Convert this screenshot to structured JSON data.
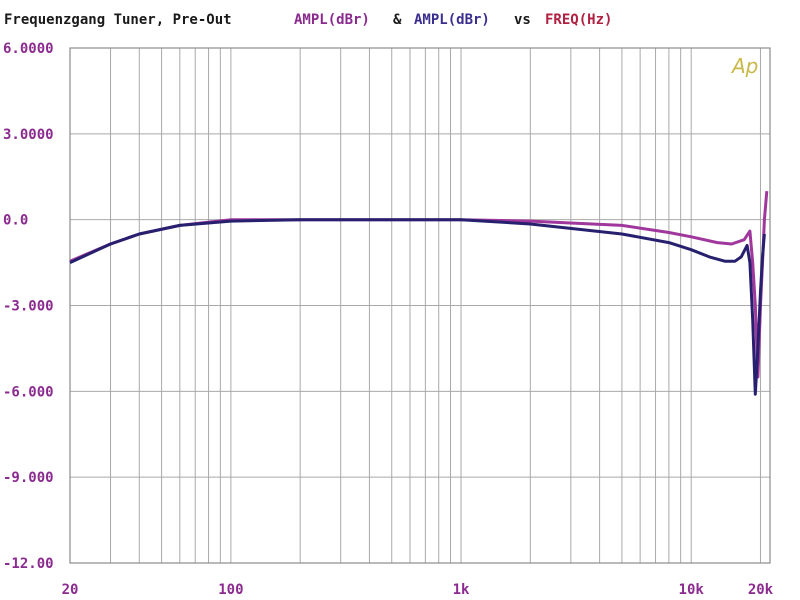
{
  "colors": {
    "grid": "#a9a9a9",
    "frame": "#8c8c8c",
    "axis_text": "#8b2a8f",
    "title_text": "#1a1a1a",
    "series_purple": "#a0379c",
    "series_navy": "#26206e",
    "ampl_label": "#8b2a8f",
    "ampl2_label": "#3a2f8f",
    "freq_label": "#b02040",
    "logo": "#c9b84a"
  },
  "title": {
    "main": "Frequenzgang Tuner, Pre-Out",
    "ampl1": "AMPL(dBr)",
    "amp_sep": "&",
    "ampl2": "AMPL(dBr)",
    "vs": "vs",
    "freq": "FREQ(Hz)"
  },
  "logo_text": "Ap",
  "chart_data": {
    "type": "line",
    "xscale": "log",
    "xlim": [
      20,
      22000
    ],
    "ylim": [
      -12,
      6
    ],
    "grid": true,
    "yticks": [
      6,
      3,
      0,
      -3,
      -6,
      -9,
      -12
    ],
    "ytick_labels": [
      "6.0000",
      "3.0000",
      "0.0",
      "-3.000",
      "-6.000",
      "-9.000",
      "-12.00"
    ],
    "xtick_values": [
      20,
      100,
      1000,
      10000,
      20000
    ],
    "xtick_labels": [
      "20",
      "100",
      "1k",
      "10k",
      "20k"
    ],
    "series": [
      {
        "color": "#a0379c",
        "x": [
          20,
          30,
          40,
          60,
          100,
          200,
          500,
          1000,
          2000,
          5000,
          8000,
          10000,
          13000,
          15000,
          17000,
          18000,
          18500,
          19000,
          19500,
          20000,
          20400,
          20800,
          21300
        ],
        "y": [
          -1.45,
          -0.85,
          -0.5,
          -0.2,
          0.0,
          0.0,
          0.0,
          0.0,
          -0.05,
          -0.2,
          -0.45,
          -0.6,
          -0.8,
          -0.85,
          -0.7,
          -0.4,
          -1.5,
          -3.0,
          -5.5,
          -3.0,
          -1.5,
          0.0,
          1.0
        ]
      },
      {
        "color": "#26206e",
        "x": [
          20,
          30,
          40,
          60,
          100,
          200,
          500,
          1000,
          2000,
          5000,
          8000,
          10000,
          12000,
          14000,
          15500,
          16500,
          17500,
          18000,
          18500,
          19000,
          19500,
          20000,
          20400,
          20800
        ],
        "y": [
          -1.5,
          -0.85,
          -0.5,
          -0.2,
          -0.05,
          0.0,
          0.0,
          0.0,
          -0.15,
          -0.5,
          -0.8,
          -1.05,
          -1.3,
          -1.45,
          -1.45,
          -1.3,
          -0.9,
          -1.5,
          -3.5,
          -6.1,
          -4.5,
          -2.5,
          -1.3,
          -0.5
        ]
      }
    ]
  }
}
